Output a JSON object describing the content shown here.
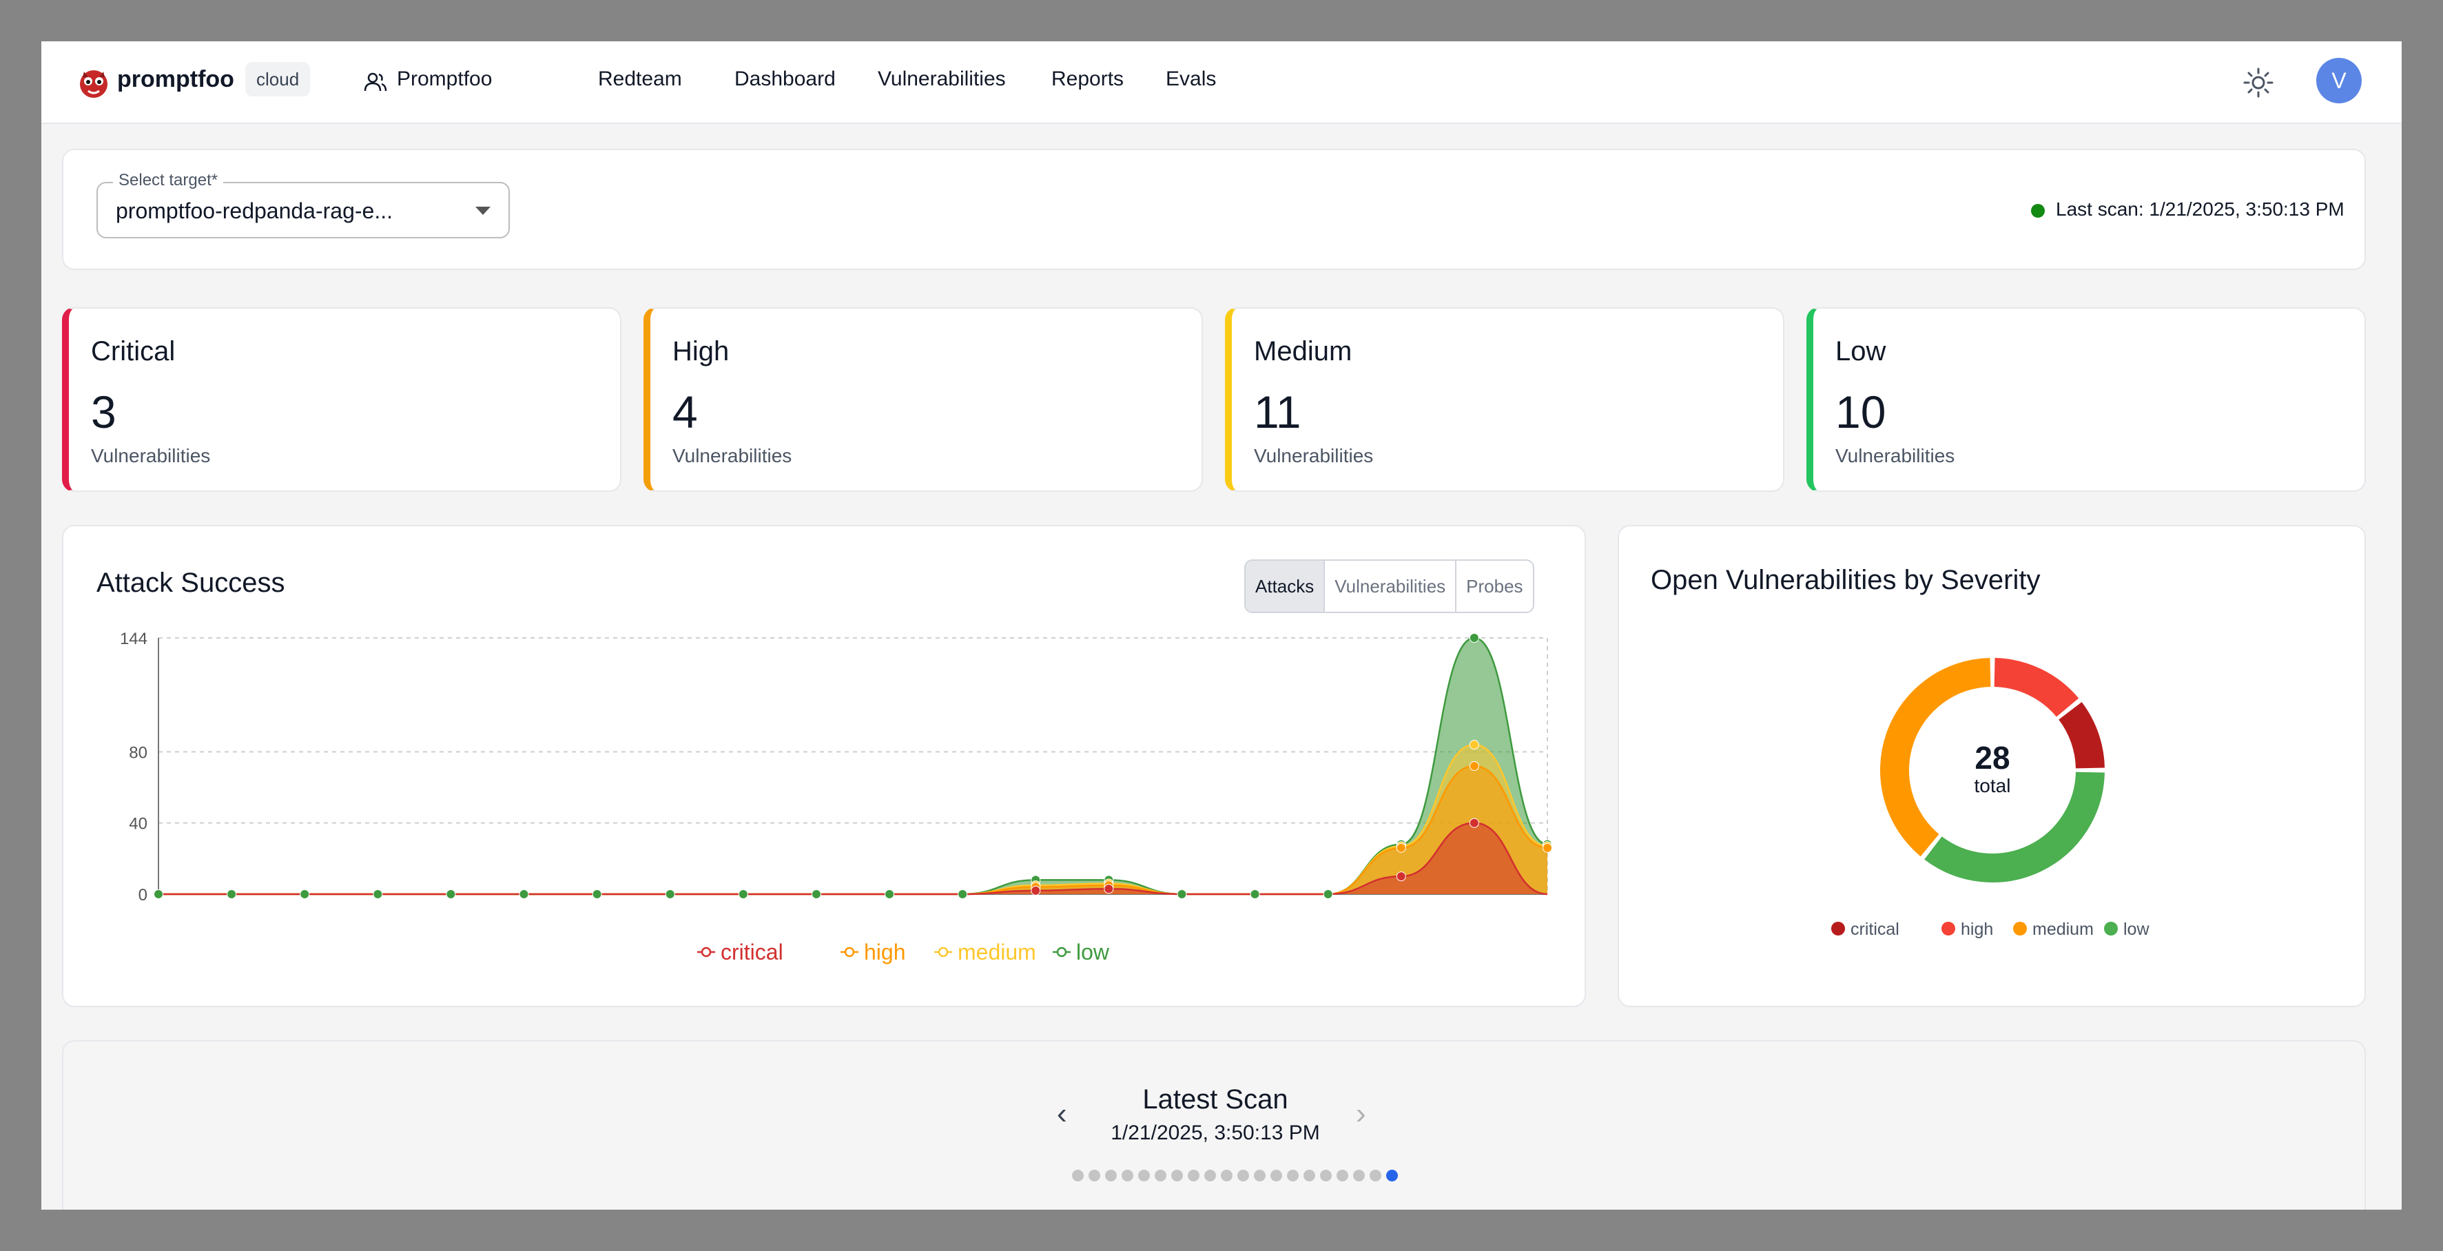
{
  "nav": {
    "brand": "promptfoo",
    "badge": "cloud",
    "org": "Promptfoo",
    "items": [
      {
        "label": "Redteam"
      },
      {
        "label": "Dashboard"
      },
      {
        "label": "Vulnerabilities"
      },
      {
        "label": "Reports"
      },
      {
        "label": "Evals"
      }
    ],
    "avatar_initial": "V",
    "icons": [
      "promptfoo-logo-icon",
      "people-icon",
      "sun-icon"
    ]
  },
  "target": {
    "label": "Select target",
    "required_mark": "*",
    "value": "promptfoo-redpanda-rag-e...",
    "last_scan": "Last scan: 1/21/2025, 3:50:13 PM",
    "status_color": "#138a13"
  },
  "severity": [
    {
      "title": "Critical",
      "count": "3",
      "sub": "Vulnerabilities",
      "color": "#e11d48"
    },
    {
      "title": "High",
      "count": "4",
      "sub": "Vulnerabilities",
      "color": "#f59e0b"
    },
    {
      "title": "Medium",
      "count": "11",
      "sub": "Vulnerabilities",
      "color": "#facc15"
    },
    {
      "title": "Low",
      "count": "10",
      "sub": "Vulnerabilities",
      "color": "#22c55e"
    }
  ],
  "attack": {
    "title": "Attack Success",
    "toggles": [
      "Attacks",
      "Vulnerabilities",
      "Probes"
    ],
    "active_toggle": "Attacks"
  },
  "chart_data": [
    {
      "type": "area",
      "title": "Attack Success",
      "x": [
        1,
        2,
        3,
        4,
        5,
        6,
        7,
        8,
        9,
        10,
        11,
        12,
        13,
        14,
        15,
        16,
        17,
        18,
        19,
        20
      ],
      "ylim": [
        0,
        144
      ],
      "yticks": [
        0,
        40,
        80,
        144
      ],
      "grid": true,
      "legend": "bottom",
      "series": [
        {
          "name": "critical",
          "color": "#d32f2f",
          "values": [
            0,
            0,
            0,
            0,
            0,
            0,
            0,
            0,
            0,
            0,
            0,
            0,
            2,
            3,
            0,
            0,
            0,
            10,
            40,
            0
          ]
        },
        {
          "name": "high",
          "color": "#ff9800",
          "values": [
            0,
            0,
            0,
            0,
            0,
            0,
            0,
            0,
            0,
            0,
            0,
            0,
            4,
            5,
            0,
            0,
            0,
            26,
            72,
            26
          ]
        },
        {
          "name": "medium",
          "color": "#ffc72c",
          "values": [
            0,
            0,
            0,
            0,
            0,
            0,
            0,
            0,
            0,
            0,
            0,
            0,
            5,
            6,
            0,
            0,
            0,
            27,
            84,
            27
          ]
        },
        {
          "name": "low",
          "color": "#3e9a3e",
          "values": [
            0,
            0,
            0,
            0,
            0,
            0,
            0,
            0,
            0,
            0,
            0,
            0,
            8,
            8,
            0,
            0,
            0,
            28,
            144,
            28
          ]
        }
      ]
    },
    {
      "type": "pie",
      "title": "Open Vulnerabilities by Severity",
      "center_value": "28",
      "center_label": "total",
      "legend": "bottom",
      "categories": [
        "critical",
        "high",
        "medium",
        "low"
      ],
      "values": [
        3,
        4,
        11,
        10
      ],
      "colors": [
        "#b71c1c",
        "#f44336",
        "#ff9800",
        "#4caf50"
      ],
      "slice_order": [
        "high",
        "critical",
        "low",
        "medium"
      ]
    }
  ],
  "scan": {
    "title": "Latest Scan",
    "date": "1/21/2025, 3:50:13 PM",
    "prev": "‹",
    "next": "›",
    "dot_count": 20,
    "active_dot": 19
  }
}
